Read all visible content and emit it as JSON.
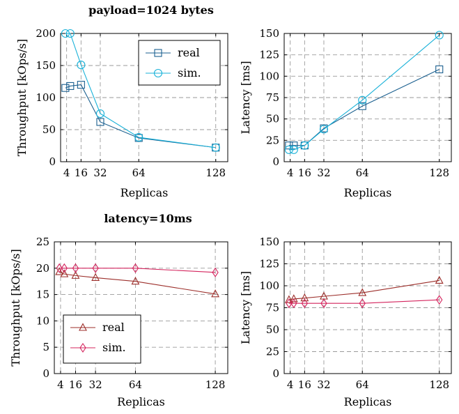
{
  "chart_data": [
    {
      "type": "line",
      "title": "payload=1024 bytes",
      "xlabel": "Replicas",
      "ylabel": "Throughput [kOps/s]",
      "x": [
        3,
        7,
        16,
        32,
        64,
        128
      ],
      "xticks": [
        "4",
        "16",
        "32",
        "64",
        "128"
      ],
      "ylim": [
        0,
        200
      ],
      "yticks": [
        "0",
        "50",
        "100",
        "150",
        "200"
      ],
      "grid": true,
      "legend": "top-right",
      "series": [
        {
          "name": "real",
          "marker": "square",
          "color": "#1a5f8f",
          "values": [
            115,
            118,
            120,
            62,
            37,
            22
          ]
        },
        {
          "name": "sim.",
          "marker": "circle",
          "color": "#18b1d8",
          "values": [
            200,
            200,
            151,
            75,
            38,
            22
          ]
        }
      ]
    },
    {
      "type": "line",
      "title": "",
      "xlabel": "Replicas",
      "ylabel": "Latency [ms]",
      "x": [
        3,
        7,
        16,
        32,
        64,
        128
      ],
      "xticks": [
        "4",
        "16",
        "32",
        "64",
        "128"
      ],
      "ylim": [
        0,
        150
      ],
      "yticks": [
        "0",
        "25",
        "50",
        "75",
        "100",
        "125",
        "150"
      ],
      "grid": true,
      "series": [
        {
          "name": "real",
          "marker": "square",
          "color": "#1a5f8f",
          "values": [
            19,
            19,
            19,
            39,
            65,
            108
          ]
        },
        {
          "name": "sim.",
          "marker": "circle",
          "color": "#18b1d8",
          "values": [
            14,
            14,
            19,
            38,
            72,
            148
          ]
        }
      ]
    },
    {
      "type": "line",
      "title": "latency=10ms",
      "xlabel": "Replicas",
      "ylabel": "Throughput [kOps/s]",
      "x": [
        3,
        7,
        16,
        32,
        64,
        128
      ],
      "xticks": [
        "4",
        "16",
        "32",
        "64",
        "128"
      ],
      "ylim": [
        0,
        25
      ],
      "yticks": [
        "0",
        "5",
        "10",
        "15",
        "20",
        "25"
      ],
      "grid": true,
      "legend": "bottom-left",
      "series": [
        {
          "name": "real",
          "marker": "triangle",
          "color": "#9c2e2a",
          "values": [
            19.3,
            18.9,
            18.6,
            18.2,
            17.5,
            15.1
          ]
        },
        {
          "name": "sim.",
          "marker": "diamond",
          "color": "#d4245d",
          "values": [
            20,
            20,
            20,
            20,
            20,
            19.2
          ]
        }
      ]
    },
    {
      "type": "line",
      "title": "",
      "xlabel": "Replicas",
      "ylabel": "Latency [ms]",
      "x": [
        3,
        7,
        16,
        32,
        64,
        128
      ],
      "xticks": [
        "4",
        "16",
        "32",
        "64",
        "128"
      ],
      "ylim": [
        0,
        150
      ],
      "yticks": [
        "0",
        "25",
        "50",
        "75",
        "100",
        "125",
        "150"
      ],
      "grid": true,
      "series": [
        {
          "name": "real",
          "marker": "triangle",
          "color": "#9c2e2a",
          "values": [
            84,
            85,
            86,
            88,
            92,
            106
          ]
        },
        {
          "name": "sim.",
          "marker": "diamond",
          "color": "#d4245d",
          "values": [
            80,
            80,
            80,
            80,
            80,
            84
          ]
        }
      ]
    }
  ]
}
